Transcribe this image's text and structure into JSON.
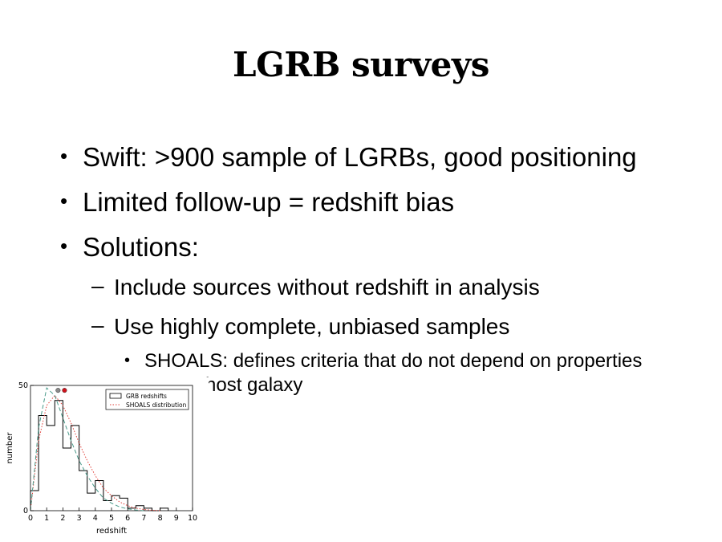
{
  "slide": {
    "title": "LGRB surveys",
    "bullets": [
      {
        "level": 1,
        "text": "Swift: >900 sample of LGRBs, good positioning"
      },
      {
        "level": 1,
        "text": "Limited follow-up = redshift bias"
      },
      {
        "level": 1,
        "text": "Solutions:"
      },
      {
        "level": 2,
        "text": "Include sources without redshift in analysis"
      },
      {
        "level": 2,
        "text": "Use highly complete, unbiased samples"
      },
      {
        "level": 3,
        "text": "SHOALS: defines criteria that do not depend on properties"
      },
      {
        "level": 3,
        "text": "host galaxy"
      }
    ]
  },
  "chart_data": {
    "type": "line",
    "title": "",
    "xlabel": "redshift",
    "ylabel": "number",
    "xlim": [
      0,
      10
    ],
    "ylim": [
      0,
      50
    ],
    "xticks": [
      "0",
      "1",
      "2",
      "3",
      "4",
      "5",
      "6",
      "7",
      "8",
      "9",
      "10"
    ],
    "yticks": [
      "0",
      "50"
    ],
    "legend_position": "top-right",
    "grid": false,
    "series": [
      {
        "name": "GRB redshifts",
        "style": "step",
        "color": "#000000",
        "bin_edges": [
          0,
          0.5,
          1,
          1.5,
          2,
          2.5,
          3,
          3.5,
          4,
          4.5,
          5,
          5.5,
          6,
          6.5,
          7,
          7.5,
          8,
          8.5
        ],
        "values": [
          8,
          38,
          34,
          44,
          25,
          34,
          16,
          7,
          12,
          4,
          6,
          5,
          1,
          2,
          1,
          0,
          1
        ]
      },
      {
        "name": "SHOALS distribution",
        "style": "dotted",
        "color": "#e0403a",
        "x": [
          0,
          0.5,
          1,
          1.5,
          2,
          2.5,
          3,
          3.5,
          4,
          4.5,
          5,
          5.5,
          6,
          6.5,
          7,
          7.5,
          8
        ],
        "y": [
          0,
          28,
          42,
          46,
          42,
          35,
          27,
          20,
          14,
          9,
          6,
          3.5,
          2,
          1,
          0.5,
          0.2,
          0
        ]
      },
      {
        "name": "",
        "style": "dashed",
        "color": "#4a9a8a",
        "x": [
          0,
          0.5,
          1,
          1.5,
          2,
          2.5,
          3,
          3.5,
          4,
          4.5,
          5,
          5.5,
          6,
          6.5,
          7
        ],
        "y": [
          0,
          33,
          49,
          46,
          37,
          28,
          20,
          14,
          9,
          5,
          3,
          1.5,
          0.7,
          0.3,
          0
        ]
      }
    ],
    "markers": [
      {
        "x": 1.7,
        "y": 49,
        "color": "#8a8a8a"
      },
      {
        "x": 2.1,
        "y": 49,
        "color": "#d0121b"
      }
    ]
  }
}
